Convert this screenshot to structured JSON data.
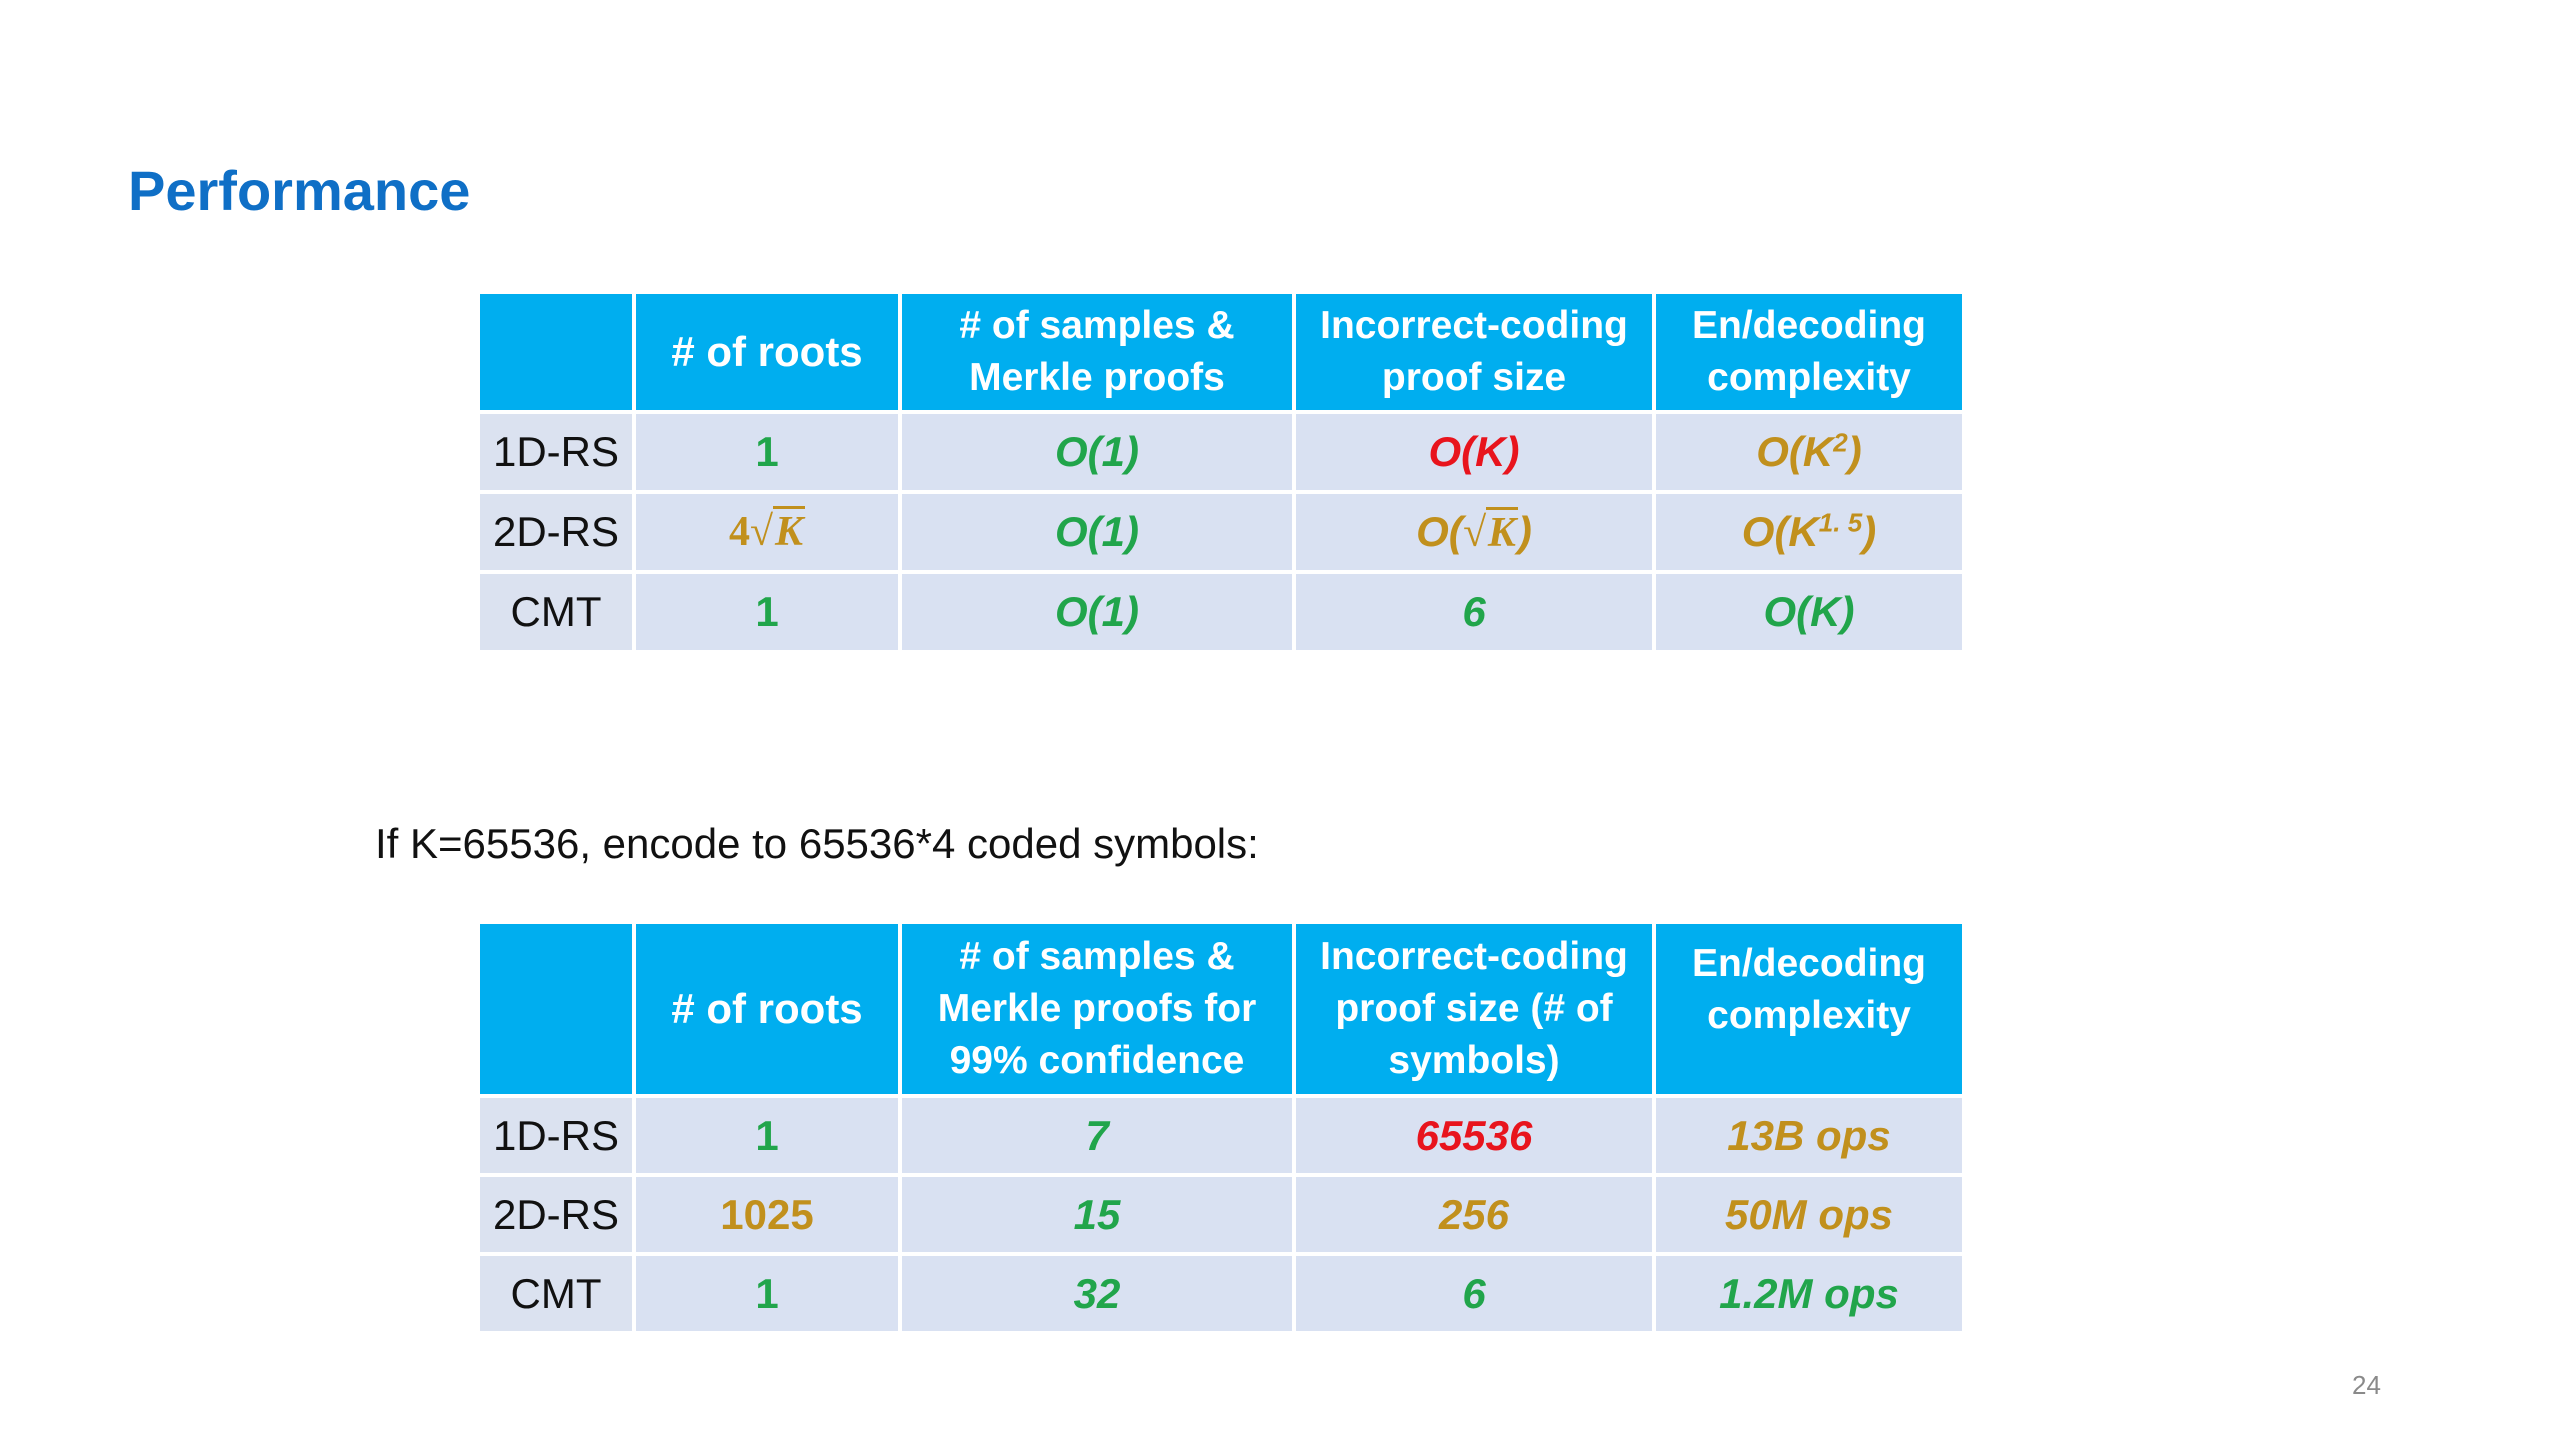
{
  "title": "Performance",
  "table1": {
    "headers": [
      "",
      "# of roots",
      "# of samples & Merkle proofs",
      "Incorrect-coding proof size",
      "En/decoding complexity"
    ],
    "rows": [
      {
        "label": "1D-RS",
        "roots": "1",
        "samples": "O(1)",
        "proof": "O(K)",
        "complexity_base": "O(K",
        "complexity_exp": "2",
        "complexity_end": ")"
      },
      {
        "label": "2D-RS",
        "roots_coef": "4",
        "roots_rad": "K",
        "samples": "O(1)",
        "proof_pre": "O(",
        "proof_rad": "K",
        "proof_end": ")",
        "complexity_base": "O(K",
        "complexity_exp": "1. 5",
        "complexity_end": ")"
      },
      {
        "label": "CMT",
        "roots": "1",
        "samples": "O(1)",
        "proof": "6",
        "complexity": "O(K)"
      }
    ]
  },
  "caption": "If K=65536, encode to 65536*4 coded symbols:",
  "table2": {
    "headers": [
      "",
      "# of roots",
      "# of samples & Merkle proofs for 99% confidence",
      "Incorrect-coding proof size (# of symbols)",
      "En/decoding complexity"
    ],
    "rows": [
      {
        "label": "1D-RS",
        "roots": "1",
        "samples": "7",
        "proof": "65536",
        "complexity": "13B ops"
      },
      {
        "label": "2D-RS",
        "roots": "1025",
        "samples": "15",
        "proof": "256",
        "complexity": "50M ops"
      },
      {
        "label": "CMT",
        "roots": "1",
        "samples": "32",
        "proof": "6",
        "complexity": "1.2M ops"
      }
    ]
  },
  "colors": {
    "title": "#0f6fc6",
    "header_bg": "#00aeef",
    "cell_bg": "#d9e1f2",
    "good": "#21a54b",
    "bad": "#e8141d",
    "medium": "#c1901d"
  },
  "page_number": "24"
}
